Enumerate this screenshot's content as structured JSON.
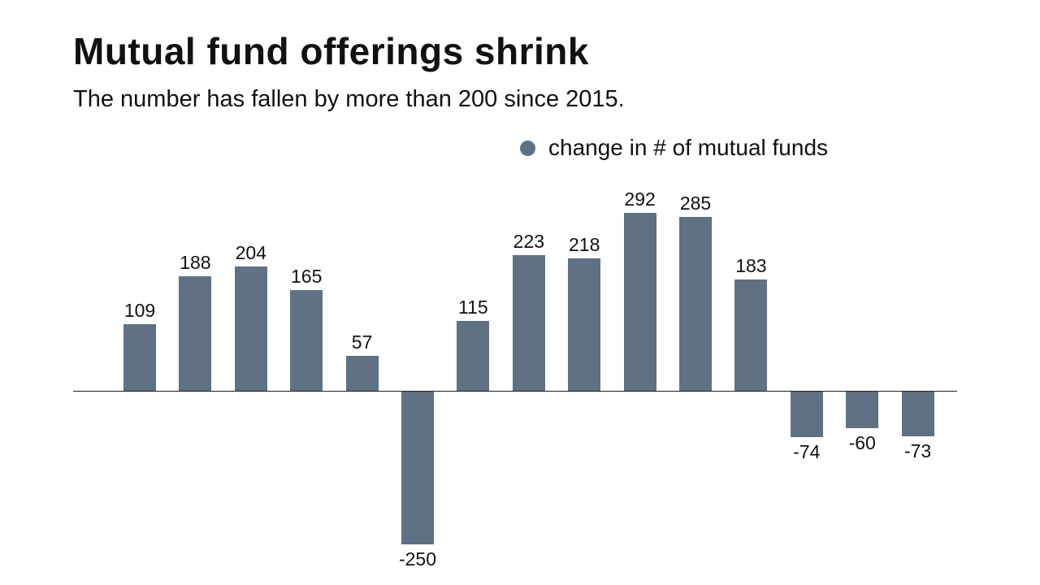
{
  "header": {
    "title": "Mutual fund offerings shrink",
    "subtitle": "The number has fallen by more than 200 since 2015."
  },
  "legend": {
    "label": "change in # of mutual funds",
    "marker_color": "#5f7183"
  },
  "chart_data": {
    "type": "bar",
    "title": "Mutual fund offerings shrink",
    "subtitle": "The number has fallen by more than 200 since 2015.",
    "series_name": "change in # of mutual funds",
    "values": [
      109,
      188,
      204,
      165,
      57,
      -250,
      115,
      223,
      218,
      292,
      285,
      183,
      -74,
      -60,
      -73
    ],
    "data_labels_shown": true,
    "xlabel": "",
    "ylabel": "",
    "x_tick_labels_shown": false,
    "grid": false,
    "baseline": 0,
    "ylim": [
      -260,
      300
    ],
    "bar_color": "#5f7183",
    "legend_position": "top-right"
  }
}
